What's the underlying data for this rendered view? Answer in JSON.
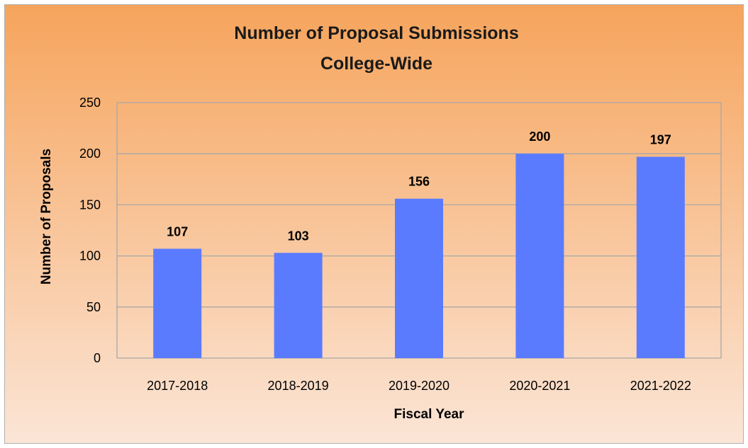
{
  "chart_data": {
    "type": "bar",
    "title": [
      "Number of Proposal Submissions",
      "College-Wide"
    ],
    "xlabel": "Fiscal Year",
    "ylabel": "Number of Proposals",
    "categories": [
      "2017-2018",
      "2018-2019",
      "2019-2020",
      "2020-2021",
      "2021-2022"
    ],
    "values": [
      107,
      103,
      156,
      200,
      197
    ],
    "data_labels": [
      "107",
      "103",
      "156",
      "200",
      "197"
    ],
    "ylim": [
      0,
      250
    ],
    "yticks": [
      0,
      50,
      100,
      150,
      200,
      250
    ],
    "ytick_labels": [
      "0",
      "50",
      "100",
      "150",
      "200",
      "250"
    ],
    "grid": true,
    "legend": "none",
    "colors": {
      "bar": "#5b7bff",
      "background_top": "#f6a45c",
      "background_bottom": "#fbe5d6",
      "grid": "#a8a8a8"
    }
  }
}
